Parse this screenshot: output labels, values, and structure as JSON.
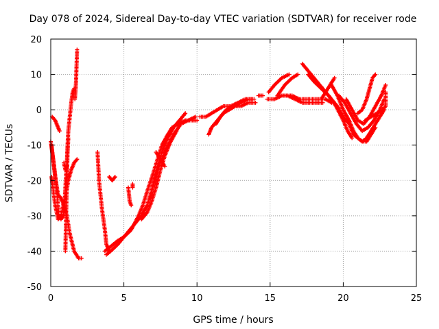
{
  "chart_data": {
    "type": "scatter",
    "title": "Day 078 of 2024, Sidereal Day-to-day VTEC variation (SDTVAR) for receiver rode",
    "xlabel": "GPS time / hours",
    "ylabel": "SDTVAR / TECUs",
    "xlim": [
      0,
      25
    ],
    "ylim": [
      -50,
      20
    ],
    "x_ticks": [
      0,
      5,
      10,
      15,
      20,
      25
    ],
    "y_ticks": [
      -50,
      -40,
      -30,
      -20,
      -10,
      0,
      10,
      20
    ],
    "grid": true,
    "marker": "+",
    "color": "#ff0000",
    "series": [
      {
        "name": "seg1",
        "points": [
          [
            0.0,
            -9
          ],
          [
            0.2,
            -15
          ],
          [
            0.4,
            -22
          ],
          [
            0.55,
            -30
          ],
          [
            0.7,
            -31
          ],
          [
            0.85,
            -30
          ],
          [
            1.0,
            -25
          ],
          [
            1.2,
            -20
          ],
          [
            1.4,
            -17
          ],
          [
            1.6,
            -15
          ],
          [
            1.8,
            -14
          ]
        ]
      },
      {
        "name": "seg2",
        "points": [
          [
            0.05,
            -19
          ],
          [
            0.15,
            -22
          ],
          [
            0.3,
            -27
          ],
          [
            0.5,
            -31
          ],
          [
            0.7,
            -30
          ],
          [
            0.9,
            -26
          ]
        ]
      },
      {
        "name": "seg3",
        "points": [
          [
            0.1,
            -2
          ],
          [
            0.3,
            -3
          ],
          [
            0.5,
            -5
          ],
          [
            0.6,
            -6
          ]
        ]
      },
      {
        "name": "seg4",
        "points": [
          [
            0.05,
            -10
          ],
          [
            0.3,
            -19
          ],
          [
            0.5,
            -24
          ],
          [
            0.7,
            -25
          ],
          [
            0.9,
            -27
          ],
          [
            1.1,
            -30
          ],
          [
            1.3,
            -35
          ],
          [
            1.6,
            -40
          ],
          [
            1.9,
            -42
          ],
          [
            2.1,
            -42
          ]
        ]
      },
      {
        "name": "seg5",
        "points": [
          [
            0.9,
            -30
          ],
          [
            1.0,
            -22
          ],
          [
            1.1,
            -15
          ],
          [
            1.15,
            -10
          ],
          [
            1.2,
            -6
          ],
          [
            1.3,
            -2
          ],
          [
            1.4,
            2
          ],
          [
            1.5,
            5
          ],
          [
            1.6,
            6
          ]
        ]
      },
      {
        "name": "seg6",
        "points": [
          [
            1.0,
            -40
          ],
          [
            1.05,
            -30
          ],
          [
            1.1,
            -20
          ],
          [
            1.15,
            -12
          ],
          [
            1.2,
            -8
          ]
        ]
      },
      {
        "name": "seg7",
        "points": [
          [
            1.65,
            3
          ],
          [
            1.7,
            6
          ],
          [
            1.73,
            8
          ],
          [
            1.76,
            12
          ],
          [
            1.8,
            17
          ]
        ]
      },
      {
        "name": "seg8",
        "points": [
          [
            0.9,
            -15
          ],
          [
            1.0,
            -17
          ],
          [
            1.1,
            -16
          ]
        ]
      },
      {
        "name": "seg9",
        "points": [
          [
            3.2,
            -12
          ],
          [
            3.3,
            -20
          ],
          [
            3.5,
            -28
          ],
          [
            3.7,
            -34
          ],
          [
            3.8,
            -38
          ],
          [
            4.0,
            -40
          ]
        ]
      },
      {
        "name": "seg10",
        "points": [
          [
            3.7,
            -40
          ],
          [
            4.0,
            -39
          ],
          [
            4.3,
            -38
          ],
          [
            4.6,
            -37
          ],
          [
            5.0,
            -36
          ],
          [
            5.5,
            -34
          ],
          [
            6.0,
            -30
          ],
          [
            6.3,
            -27
          ],
          [
            6.6,
            -23
          ],
          [
            7.0,
            -18
          ],
          [
            7.3,
            -14
          ],
          [
            7.6,
            -10
          ],
          [
            8.0,
            -7
          ],
          [
            8.3,
            -5
          ],
          [
            8.7,
            -4
          ],
          [
            9.2,
            -3
          ],
          [
            9.6,
            -3
          ],
          [
            10.0,
            -3
          ]
        ]
      },
      {
        "name": "seg11",
        "points": [
          [
            3.8,
            -41
          ],
          [
            4.1,
            -40
          ],
          [
            4.6,
            -38
          ],
          [
            5.2,
            -35
          ],
          [
            5.8,
            -32
          ],
          [
            6.2,
            -30
          ],
          [
            6.6,
            -27
          ],
          [
            6.9,
            -23
          ],
          [
            7.2,
            -19
          ],
          [
            7.5,
            -15
          ],
          [
            7.9,
            -11
          ],
          [
            8.4,
            -7
          ],
          [
            8.9,
            -4
          ],
          [
            9.4,
            -3
          ],
          [
            9.9,
            -2
          ]
        ]
      },
      {
        "name": "seg12",
        "points": [
          [
            6.2,
            -31
          ],
          [
            6.6,
            -29
          ],
          [
            6.9,
            -26
          ],
          [
            7.2,
            -22
          ],
          [
            7.5,
            -17
          ],
          [
            7.8,
            -13
          ],
          [
            8.2,
            -9
          ],
          [
            8.6,
            -6
          ]
        ]
      },
      {
        "name": "seg13",
        "points": [
          [
            6.8,
            -25
          ],
          [
            7.0,
            -21
          ],
          [
            7.3,
            -16
          ],
          [
            7.6,
            -12
          ],
          [
            8.0,
            -8
          ],
          [
            8.4,
            -5
          ],
          [
            8.8,
            -3
          ],
          [
            9.2,
            -1
          ]
        ]
      },
      {
        "name": "seg14",
        "points": [
          [
            7.2,
            -12
          ],
          [
            7.5,
            -14
          ],
          [
            7.8,
            -16
          ]
        ]
      },
      {
        "name": "seg15",
        "points": [
          [
            4.0,
            -19
          ],
          [
            4.2,
            -20
          ],
          [
            4.4,
            -19
          ]
        ]
      },
      {
        "name": "seg16",
        "points": [
          [
            5.3,
            -22
          ],
          [
            5.35,
            -24
          ],
          [
            5.4,
            -26
          ],
          [
            5.5,
            -27
          ]
        ]
      },
      {
        "name": "seg17",
        "points": [
          [
            5.6,
            -21
          ],
          [
            5.6,
            -22
          ]
        ]
      },
      {
        "name": "seg18",
        "points": [
          [
            10.8,
            -7
          ],
          [
            11.0,
            -5
          ],
          [
            11.4,
            -3
          ],
          [
            11.8,
            -1
          ],
          [
            12.2,
            0
          ],
          [
            12.6,
            1
          ],
          [
            13.0,
            1
          ],
          [
            13.5,
            2
          ],
          [
            14.0,
            2
          ]
        ]
      },
      {
        "name": "seg19",
        "points": [
          [
            10.2,
            -2
          ],
          [
            10.6,
            -2
          ],
          [
            11.0,
            -1
          ],
          [
            11.4,
            0
          ],
          [
            11.8,
            1
          ],
          [
            12.3,
            1
          ],
          [
            12.8,
            2
          ],
          [
            13.3,
            3
          ],
          [
            13.8,
            3
          ]
        ]
      },
      {
        "name": "seg20",
        "points": [
          [
            11.3,
            -4
          ],
          [
            11.6,
            -2
          ],
          [
            12.0,
            0
          ],
          [
            12.5,
            1
          ],
          [
            13.0,
            2
          ],
          [
            13.5,
            3
          ],
          [
            13.9,
            3
          ]
        ]
      },
      {
        "name": "seg21",
        "points": [
          [
            14.2,
            4
          ],
          [
            14.5,
            4
          ]
        ]
      },
      {
        "name": "seg22",
        "points": [
          [
            14.8,
            3
          ],
          [
            15.3,
            3
          ],
          [
            15.8,
            4
          ],
          [
            16.2,
            4
          ],
          [
            16.7,
            3
          ],
          [
            17.2,
            2
          ],
          [
            17.7,
            2
          ],
          [
            18.2,
            2
          ],
          [
            18.6,
            2
          ]
        ]
      },
      {
        "name": "seg23",
        "points": [
          [
            14.9,
            5
          ],
          [
            15.3,
            7
          ],
          [
            15.8,
            9
          ],
          [
            16.3,
            10
          ]
        ]
      },
      {
        "name": "seg24",
        "points": [
          [
            15.5,
            4
          ],
          [
            16.0,
            7
          ],
          [
            16.5,
            9
          ],
          [
            16.9,
            10
          ]
        ]
      },
      {
        "name": "seg25",
        "points": [
          [
            15.9,
            4
          ],
          [
            16.5,
            4
          ],
          [
            17.0,
            3
          ],
          [
            17.5,
            3
          ],
          [
            18.0,
            3
          ],
          [
            18.4,
            3
          ],
          [
            18.8,
            3
          ],
          [
            19.2,
            2
          ]
        ]
      },
      {
        "name": "seg26",
        "points": [
          [
            17.2,
            13
          ],
          [
            17.6,
            11
          ],
          [
            18.0,
            9
          ],
          [
            18.4,
            7
          ],
          [
            18.8,
            5
          ],
          [
            19.2,
            3
          ],
          [
            19.6,
            1
          ],
          [
            20.0,
            -2
          ],
          [
            20.4,
            -4
          ],
          [
            20.7,
            -7
          ],
          [
            21.0,
            -8
          ],
          [
            21.3,
            -9
          ],
          [
            21.6,
            -9
          ],
          [
            21.9,
            -7
          ],
          [
            22.2,
            -5
          ]
        ]
      },
      {
        "name": "seg27",
        "points": [
          [
            17.6,
            10
          ],
          [
            18.0,
            8
          ],
          [
            18.5,
            6
          ],
          [
            19.0,
            4
          ],
          [
            19.5,
            1
          ],
          [
            20.0,
            -3
          ],
          [
            20.3,
            -6
          ],
          [
            20.6,
            -8
          ]
        ]
      },
      {
        "name": "seg28",
        "points": [
          [
            18.5,
            3
          ],
          [
            18.8,
            5
          ],
          [
            19.1,
            7
          ],
          [
            19.4,
            9
          ]
        ]
      },
      {
        "name": "seg29",
        "points": [
          [
            19.2,
            7
          ],
          [
            19.6,
            4
          ],
          [
            20.0,
            0
          ],
          [
            20.4,
            -3
          ],
          [
            20.7,
            -6
          ],
          [
            21.0,
            -8
          ],
          [
            21.3,
            -9
          ],
          [
            21.6,
            -8
          ],
          [
            21.9,
            -6
          ],
          [
            22.2,
            -4
          ],
          [
            22.5,
            -2
          ],
          [
            22.8,
            0
          ]
        ]
      },
      {
        "name": "seg30",
        "points": [
          [
            19.7,
            4
          ],
          [
            20.1,
            2
          ],
          [
            20.5,
            -1
          ],
          [
            20.9,
            -4
          ],
          [
            21.3,
            -6
          ],
          [
            21.7,
            -5
          ],
          [
            22.1,
            -3
          ],
          [
            22.5,
            0
          ],
          [
            22.8,
            3
          ]
        ]
      },
      {
        "name": "seg31",
        "points": [
          [
            20.2,
            3
          ],
          [
            20.6,
            0
          ],
          [
            21.0,
            -3
          ],
          [
            21.4,
            -4
          ],
          [
            21.8,
            -2
          ],
          [
            22.2,
            1
          ],
          [
            22.6,
            4
          ],
          [
            22.9,
            7
          ]
        ]
      },
      {
        "name": "seg32",
        "points": [
          [
            21.0,
            -1
          ],
          [
            21.3,
            0
          ],
          [
            21.6,
            3
          ],
          [
            21.8,
            6
          ],
          [
            22.0,
            9
          ],
          [
            22.2,
            10
          ]
        ]
      },
      {
        "name": "seg33",
        "points": [
          [
            21.5,
            -3
          ],
          [
            21.9,
            -2
          ],
          [
            22.3,
            -1
          ],
          [
            22.7,
            0
          ],
          [
            22.9,
            1
          ],
          [
            22.9,
            5
          ]
        ]
      }
    ]
  }
}
